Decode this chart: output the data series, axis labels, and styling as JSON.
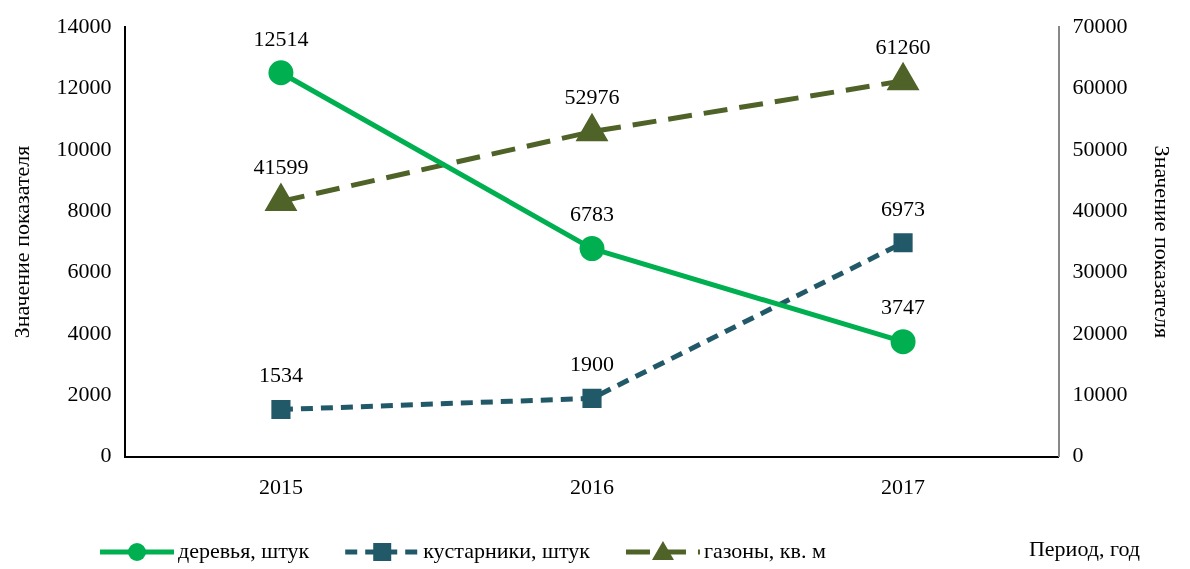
{
  "chart_data": {
    "type": "line",
    "categories": [
      "2015",
      "2016",
      "2017"
    ],
    "series": [
      {
        "name": "деревья, штук",
        "color": "#00b050",
        "values": [
          12514,
          6783,
          3747
        ],
        "marker": "circle",
        "line_style": "solid"
      },
      {
        "name": "кустарники, штук",
        "color": "#215968",
        "values": [
          1534,
          1900,
          6973
        ],
        "marker": "square",
        "line_style": "dashed"
      },
      {
        "name": "газоны, кв. м",
        "color": "#4f6228",
        "values": [
          41599,
          52976,
          61260
        ],
        "marker": "triangle",
        "line_style": "dashed",
        "axis": "y2"
      }
    ],
    "xlabel": "Период, год",
    "ylabel": "Значение показателя",
    "y2label": "Значение показателя",
    "ylim": [
      0,
      14000
    ],
    "yticks": [
      0,
      2000,
      4000,
      6000,
      8000,
      10000,
      12000,
      14000
    ],
    "y2lim": [
      0,
      70000
    ],
    "y2ticks": [
      0,
      10000,
      20000,
      30000,
      40000,
      50000,
      60000,
      70000
    ],
    "grid": false,
    "legend": "bottom",
    "data_labels": true
  }
}
